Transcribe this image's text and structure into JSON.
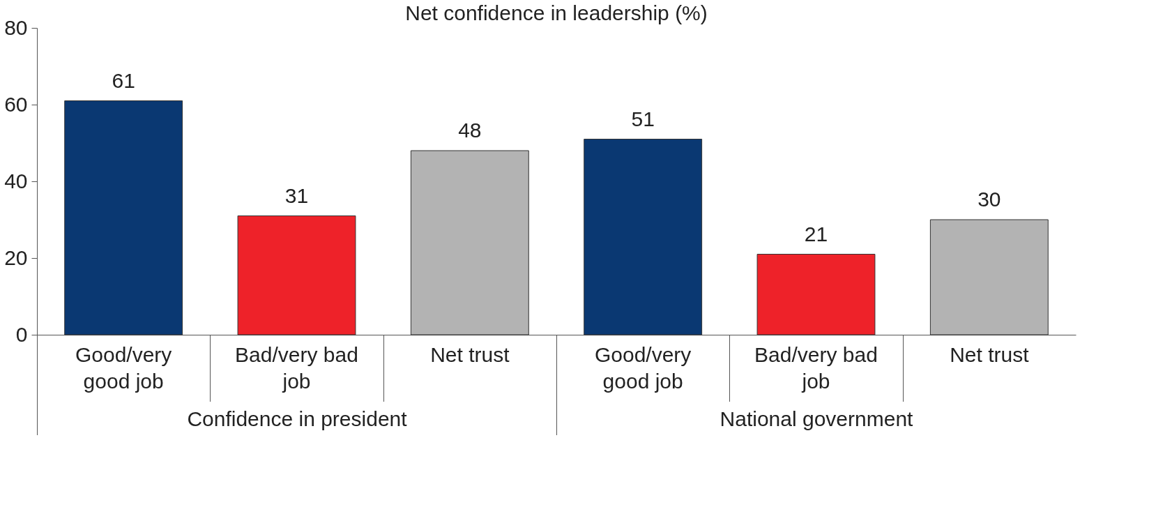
{
  "chart_data": {
    "type": "bar",
    "title": "Net confidence in leadership (%)",
    "categories": [
      "Good/very good job",
      "Bad/very bad job",
      "Net trust",
      "Good/very good job",
      "Bad/very bad job",
      "Net trust"
    ],
    "values": [
      61,
      31,
      48,
      51,
      21,
      30
    ],
    "colors": [
      "#0a3872",
      "#ee2229",
      "#b3b3b3",
      "#0a3872",
      "#ee2229",
      "#b3b3b3"
    ],
    "ylim": [
      0,
      80
    ],
    "yticks": [
      0,
      20,
      40,
      60,
      80
    ],
    "data_labels": true,
    "annotations": [
      "Confidence in president",
      "National government"
    ]
  }
}
